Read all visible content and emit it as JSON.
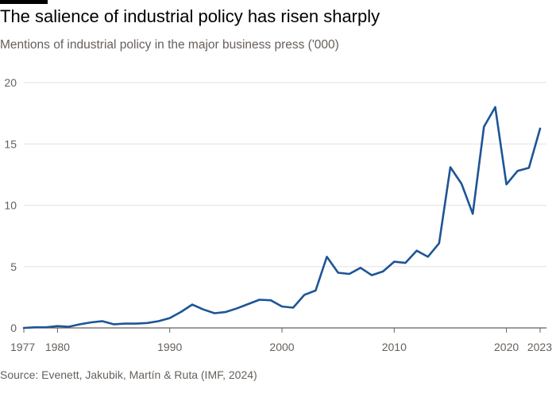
{
  "title": "The salience of industrial policy has risen sharply",
  "subtitle": "Mentions of industrial policy in the major business press ('000)",
  "source": "Source: Evenett, Jakubik, Martín & Ruta (IMF, 2024)",
  "colors": {
    "line": "#1d5596",
    "grid": "#e6e2df",
    "axis": "#66605c",
    "text": "#66605c"
  },
  "chart_data": {
    "type": "line",
    "title": "The salience of industrial policy has risen sharply",
    "subtitle": "Mentions of industrial policy in the major business press ('000)",
    "xlabel": "",
    "ylabel": "",
    "xlim": [
      1977,
      2023
    ],
    "ylim": [
      0,
      20
    ],
    "x_ticks": [
      1977,
      1980,
      1990,
      2000,
      2010,
      2020,
      2023
    ],
    "y_ticks": [
      0,
      5,
      10,
      15,
      20
    ],
    "grid": "horizontal",
    "series": [
      {
        "name": "",
        "x": [
          1977,
          1978,
          1979,
          1980,
          1981,
          1982,
          1983,
          1984,
          1985,
          1986,
          1987,
          1988,
          1989,
          1990,
          1991,
          1992,
          1993,
          1994,
          1995,
          1996,
          1997,
          1998,
          1999,
          2000,
          2001,
          2002,
          2003,
          2004,
          2005,
          2006,
          2007,
          2008,
          2009,
          2010,
          2011,
          2012,
          2013,
          2014,
          2015,
          2016,
          2017,
          2018,
          2019,
          2020,
          2021,
          2022,
          2023
        ],
        "y": [
          0.0,
          0.05,
          0.05,
          0.15,
          0.1,
          0.3,
          0.45,
          0.55,
          0.3,
          0.35,
          0.35,
          0.4,
          0.55,
          0.8,
          1.3,
          1.9,
          1.5,
          1.2,
          1.3,
          1.6,
          1.95,
          2.3,
          2.25,
          1.75,
          1.65,
          2.7,
          3.05,
          5.8,
          4.5,
          4.4,
          4.9,
          4.3,
          4.6,
          5.4,
          5.3,
          6.3,
          5.8,
          6.9,
          13.1,
          11.75,
          9.3,
          16.4,
          18.0,
          11.7,
          12.8,
          13.05,
          16.25
        ]
      }
    ]
  }
}
